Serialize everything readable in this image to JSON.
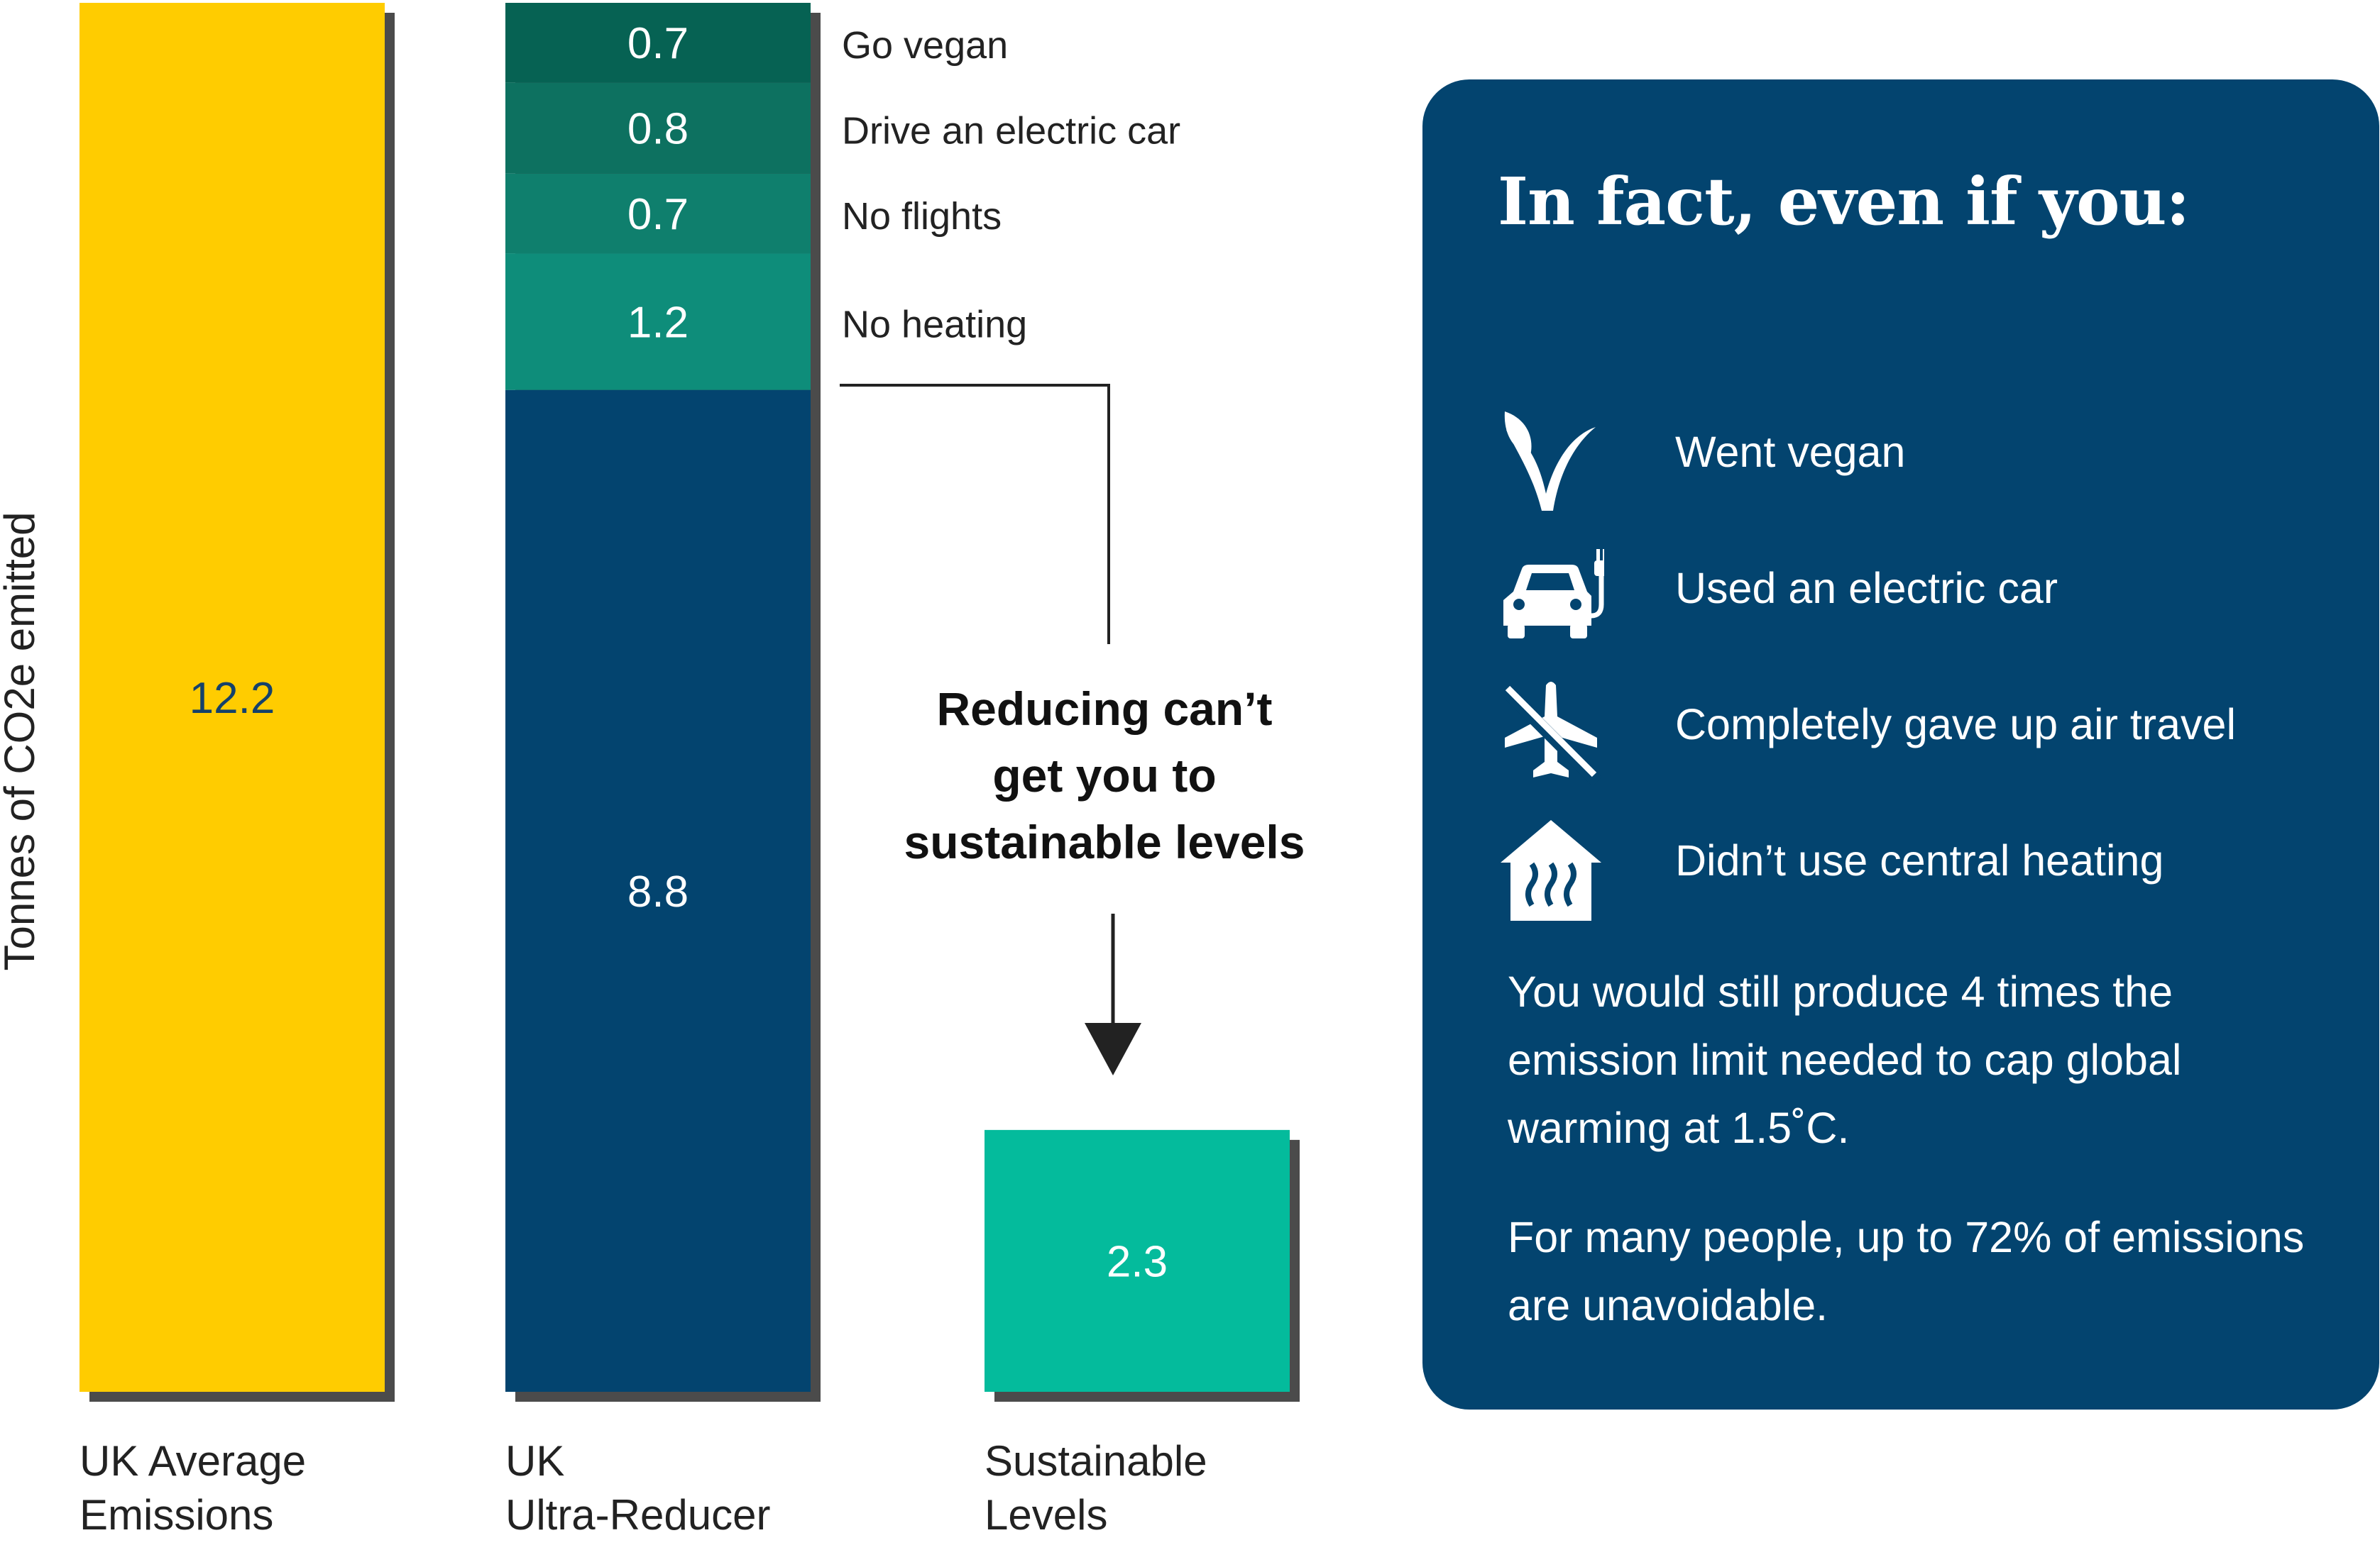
{
  "chart_data": {
    "type": "bar",
    "stacked": true,
    "ylabel": "Tonnes of CO2e emitted",
    "ylim": [
      0,
      12.2
    ],
    "categories": [
      "UK Average\nEmissions",
      "UK\nUltra-Reducer",
      "Sustainable\nLevels"
    ],
    "bars": [
      {
        "category": "UK Average\nEmissions",
        "segments": [
          {
            "value": 12.2,
            "label": "12.2",
            "color": "#ffcc00",
            "text_color": "#14416b"
          }
        ]
      },
      {
        "category": "UK\nUltra-Reducer",
        "segments": [
          {
            "value": 8.8,
            "label": "8.8",
            "color": "#03446f",
            "text_color": "#ffffff"
          },
          {
            "value": 1.2,
            "label": "1.2",
            "color": "#0e8d7a",
            "text_color": "#ffffff",
            "annotation": "No heating"
          },
          {
            "value": 0.7,
            "label": "0.7",
            "color": "#0f7f6d",
            "text_color": "#ffffff",
            "annotation": "No flights"
          },
          {
            "value": 0.8,
            "label": "0.8",
            "color": "#0d7160",
            "text_color": "#ffffff",
            "annotation": "Drive an electric car"
          },
          {
            "value": 0.7,
            "label": "0.7",
            "color": "#066253",
            "text_color": "#ffffff",
            "annotation": "Go vegan"
          }
        ]
      },
      {
        "category": "Sustainable\nLevels",
        "segments": [
          {
            "value": 2.3,
            "label": "2.3",
            "color": "#04bb9c",
            "text_color": "#ffffff"
          }
        ]
      }
    ],
    "annotation": "Reducing can’t\nget you to\nsustainable levels",
    "shadow_color": "#4b4b4b",
    "axis_text_color": "#222222"
  },
  "panel": {
    "title": "In fact, even if you:",
    "items": [
      {
        "icon": "leaf-icon",
        "text": "Went vegan"
      },
      {
        "icon": "electric-car-icon",
        "text": "Used an electric car"
      },
      {
        "icon": "no-flight-icon",
        "text": "Completely gave up air travel"
      },
      {
        "icon": "house-heating-icon",
        "text": "Didn’t use central heating"
      }
    ],
    "paragraph1": "You would still produce 4 times the emission limit needed to cap global warming at 1.5˚C.",
    "paragraph2": "For many people, up to 72% of emissions are unavoidable.",
    "background": "#03446f"
  }
}
